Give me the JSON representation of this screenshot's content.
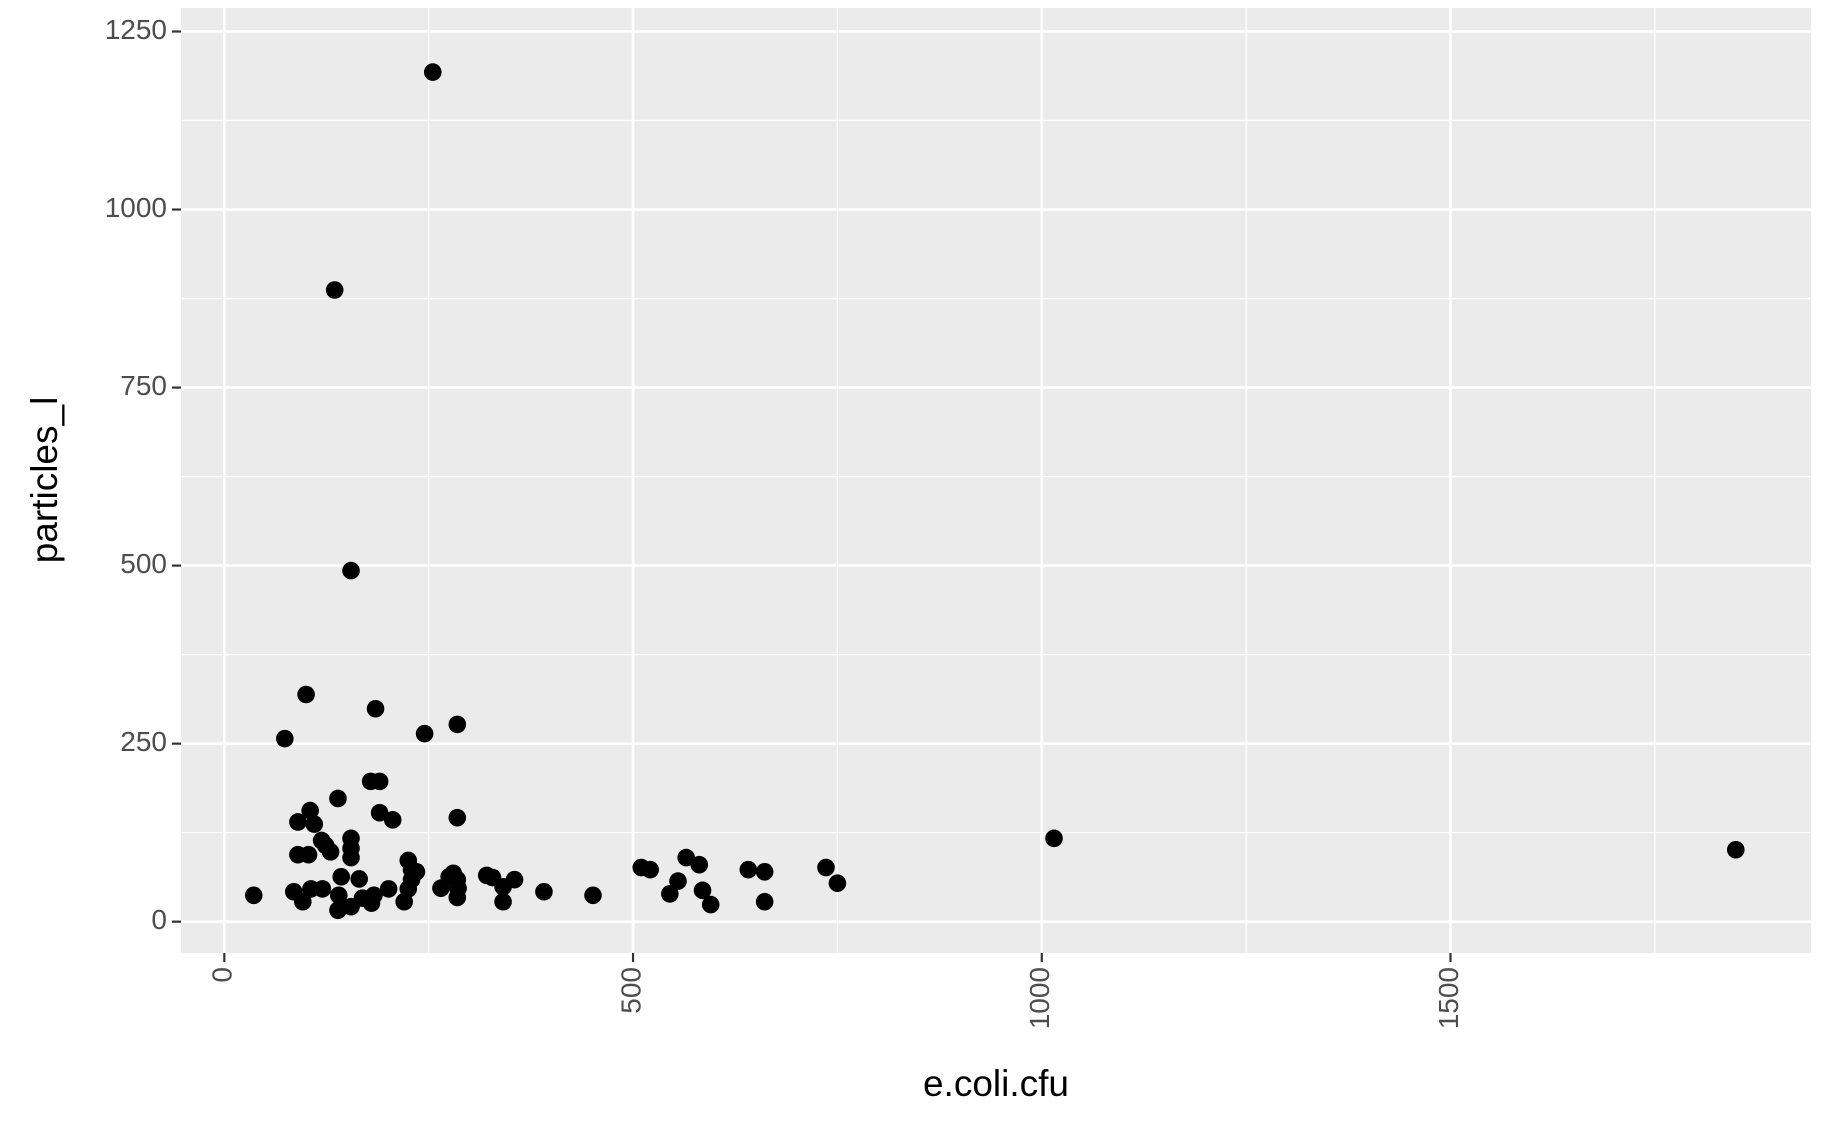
{
  "chart_data": {
    "type": "scatter",
    "x_label": "e.coli.cfu",
    "y_label": "particles_l",
    "color": "#000000",
    "panel_color": "#ebebeb",
    "grid": true,
    "xlim": [
      -53,
      1941
    ],
    "ylim": [
      -44,
      1283
    ],
    "xticks": [
      0,
      500,
      1000,
      1500
    ],
    "yticks": [
      0,
      250,
      500,
      750,
      1000,
      1250
    ],
    "x_minor_ticks": [
      250,
      750,
      1250,
      1750
    ],
    "y_minor_ticks": [
      125,
      375,
      625,
      875,
      1125
    ],
    "x": [
      255,
      135,
      155,
      100,
      185,
      74,
      245,
      285,
      139,
      179,
      190,
      105,
      90,
      110,
      190,
      206,
      285,
      119,
      124,
      130,
      90,
      103,
      155,
      155,
      155,
      225,
      229,
      235,
      143,
      165,
      85,
      106,
      120,
      96,
      140,
      139,
      155,
      169,
      183,
      180,
      201,
      220,
      225,
      229,
      265,
      275,
      280,
      285,
      286,
      285,
      321,
      328,
      341,
      341,
      355,
      391,
      451,
      36,
      510,
      521,
      555,
      565,
      545,
      581,
      585,
      595,
      641,
      661,
      661,
      736,
      750,
      1015,
      1849
    ],
    "y": [
      1193,
      887,
      493,
      319,
      299,
      257,
      264,
      277,
      173,
      197,
      197,
      156,
      140,
      137,
      153,
      143,
      146,
      114,
      107,
      98,
      94,
      94,
      117,
      103,
      90,
      86,
      73,
      70,
      63,
      60,
      42,
      46,
      46,
      28,
      37,
      16,
      21,
      33,
      37,
      26,
      46,
      28,
      46,
      59,
      47,
      63,
      68,
      59,
      47,
      34,
      65,
      62,
      49,
      28,
      59,
      42,
      37,
      37,
      76,
      73,
      57,
      90,
      39,
      80,
      44,
      24,
      73,
      70,
      28,
      76,
      54,
      117,
      101
    ]
  }
}
